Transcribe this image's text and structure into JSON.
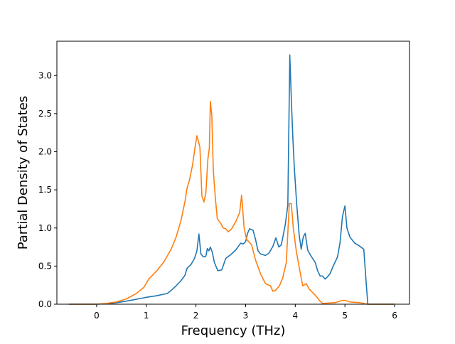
{
  "chart_data": {
    "type": "line",
    "title": "",
    "xlabel": "Frequency (THz)",
    "ylabel": "Partial Density of States",
    "xlim": [
      -0.8,
      6.3
    ],
    "ylim": [
      0,
      3.45
    ],
    "xticks": [
      0,
      1,
      2,
      3,
      4,
      5,
      6
    ],
    "yticks": [
      0.0,
      0.5,
      1.0,
      1.5,
      2.0,
      2.5,
      3.0
    ],
    "xtick_labels": [
      "0",
      "1",
      "2",
      "3",
      "4",
      "5",
      "6"
    ],
    "ytick_labels": [
      "0.0",
      "0.5",
      "1.0",
      "1.5",
      "2.0",
      "2.5",
      "3.0"
    ],
    "grid": false,
    "legend": "none",
    "series": [
      {
        "color": "#1f77b4",
        "points": [
          [
            -0.55,
            0.0
          ],
          [
            0.0,
            0.0
          ],
          [
            0.3,
            0.01
          ],
          [
            0.6,
            0.04
          ],
          [
            1.0,
            0.09
          ],
          [
            1.2,
            0.11
          ],
          [
            1.42,
            0.14
          ],
          [
            1.5,
            0.18
          ],
          [
            1.6,
            0.24
          ],
          [
            1.7,
            0.31
          ],
          [
            1.78,
            0.38
          ],
          [
            1.82,
            0.47
          ],
          [
            1.9,
            0.52
          ],
          [
            1.97,
            0.6
          ],
          [
            2.02,
            0.7
          ],
          [
            2.06,
            0.92
          ],
          [
            2.1,
            0.66
          ],
          [
            2.15,
            0.62
          ],
          [
            2.2,
            0.63
          ],
          [
            2.23,
            0.73
          ],
          [
            2.26,
            0.7
          ],
          [
            2.29,
            0.75
          ],
          [
            2.33,
            0.68
          ],
          [
            2.37,
            0.55
          ],
          [
            2.44,
            0.44
          ],
          [
            2.52,
            0.45
          ],
          [
            2.6,
            0.6
          ],
          [
            2.7,
            0.65
          ],
          [
            2.8,
            0.71
          ],
          [
            2.9,
            0.8
          ],
          [
            2.95,
            0.79
          ],
          [
            3.0,
            0.82
          ],
          [
            3.04,
            0.93
          ],
          [
            3.08,
            0.99
          ],
          [
            3.15,
            0.97
          ],
          [
            3.2,
            0.85
          ],
          [
            3.25,
            0.7
          ],
          [
            3.3,
            0.66
          ],
          [
            3.4,
            0.64
          ],
          [
            3.47,
            0.67
          ],
          [
            3.55,
            0.76
          ],
          [
            3.61,
            0.87
          ],
          [
            3.67,
            0.75
          ],
          [
            3.72,
            0.78
          ],
          [
            3.8,
            1.05
          ],
          [
            3.85,
            1.3
          ],
          [
            3.89,
            3.27
          ],
          [
            3.92,
            2.7
          ],
          [
            3.95,
            2.2
          ],
          [
            3.98,
            1.8
          ],
          [
            4.03,
            1.3
          ],
          [
            4.08,
            0.9
          ],
          [
            4.12,
            0.72
          ],
          [
            4.16,
            0.88
          ],
          [
            4.2,
            0.93
          ],
          [
            4.25,
            0.71
          ],
          [
            4.3,
            0.65
          ],
          [
            4.4,
            0.55
          ],
          [
            4.45,
            0.44
          ],
          [
            4.5,
            0.37
          ],
          [
            4.55,
            0.37
          ],
          [
            4.6,
            0.33
          ],
          [
            4.65,
            0.36
          ],
          [
            4.7,
            0.4
          ],
          [
            4.75,
            0.48
          ],
          [
            4.85,
            0.62
          ],
          [
            4.9,
            0.8
          ],
          [
            4.95,
            1.15
          ],
          [
            5.0,
            1.29
          ],
          [
            5.04,
            1.0
          ],
          [
            5.1,
            0.88
          ],
          [
            5.2,
            0.8
          ],
          [
            5.3,
            0.76
          ],
          [
            5.38,
            0.72
          ],
          [
            5.42,
            0.35
          ],
          [
            5.46,
            0.0
          ],
          [
            6.0,
            0.0
          ]
        ]
      },
      {
        "color": "#ff7f0e",
        "points": [
          [
            -0.55,
            0.0
          ],
          [
            0.0,
            0.0
          ],
          [
            0.2,
            0.01
          ],
          [
            0.4,
            0.03
          ],
          [
            0.6,
            0.07
          ],
          [
            0.8,
            0.14
          ],
          [
            0.95,
            0.22
          ],
          [
            1.05,
            0.33
          ],
          [
            1.2,
            0.43
          ],
          [
            1.35,
            0.55
          ],
          [
            1.5,
            0.72
          ],
          [
            1.6,
            0.88
          ],
          [
            1.7,
            1.1
          ],
          [
            1.78,
            1.35
          ],
          [
            1.82,
            1.52
          ],
          [
            1.87,
            1.63
          ],
          [
            1.93,
            1.82
          ],
          [
            1.98,
            2.05
          ],
          [
            2.02,
            2.21
          ],
          [
            2.08,
            2.06
          ],
          [
            2.12,
            1.42
          ],
          [
            2.16,
            1.34
          ],
          [
            2.2,
            1.46
          ],
          [
            2.24,
            1.9
          ],
          [
            2.27,
            2.05
          ],
          [
            2.29,
            2.66
          ],
          [
            2.32,
            2.47
          ],
          [
            2.35,
            1.75
          ],
          [
            2.39,
            1.4
          ],
          [
            2.43,
            1.12
          ],
          [
            2.5,
            1.06
          ],
          [
            2.55,
            1.0
          ],
          [
            2.6,
            0.99
          ],
          [
            2.65,
            0.95
          ],
          [
            2.72,
            0.99
          ],
          [
            2.8,
            1.08
          ],
          [
            2.88,
            1.2
          ],
          [
            2.92,
            1.43
          ],
          [
            2.97,
            1.0
          ],
          [
            3.02,
            0.85
          ],
          [
            3.12,
            0.78
          ],
          [
            3.2,
            0.58
          ],
          [
            3.3,
            0.4
          ],
          [
            3.4,
            0.27
          ],
          [
            3.5,
            0.24
          ],
          [
            3.55,
            0.17
          ],
          [
            3.6,
            0.18
          ],
          [
            3.68,
            0.24
          ],
          [
            3.75,
            0.35
          ],
          [
            3.82,
            0.55
          ],
          [
            3.88,
            1.32
          ],
          [
            3.92,
            1.32
          ],
          [
            3.96,
            1.0
          ],
          [
            4.02,
            0.7
          ],
          [
            4.08,
            0.48
          ],
          [
            4.15,
            0.24
          ],
          [
            4.22,
            0.27
          ],
          [
            4.28,
            0.2
          ],
          [
            4.4,
            0.12
          ],
          [
            4.5,
            0.04
          ],
          [
            4.55,
            0.01
          ],
          [
            4.8,
            0.02
          ],
          [
            4.95,
            0.05
          ],
          [
            5.0,
            0.05
          ],
          [
            5.1,
            0.03
          ],
          [
            5.3,
            0.02
          ],
          [
            5.45,
            0.0
          ],
          [
            6.0,
            0.0
          ]
        ]
      }
    ]
  }
}
